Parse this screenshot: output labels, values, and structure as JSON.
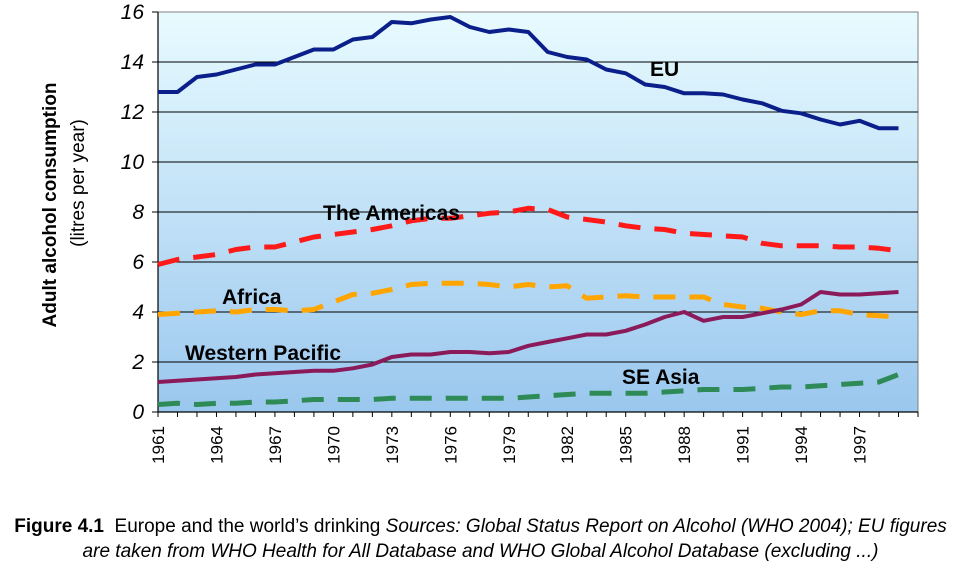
{
  "chart_data": {
    "type": "line",
    "ylabel": "Adult alcohol consumption",
    "ylabel_units": "(litres per year)",
    "ylim": [
      0,
      16
    ],
    "yticks": [
      "0",
      "2",
      "4",
      "6",
      "8",
      "10",
      "12",
      "14",
      "16"
    ],
    "xlim": [
      1961,
      2000
    ],
    "xticks": [
      "1961",
      "1964",
      "1967",
      "1970",
      "1973",
      "1976",
      "1979",
      "1982",
      "1985",
      "1988",
      "1991",
      "1994",
      "1997"
    ],
    "grid": true,
    "background": "light-blue vertical gradient",
    "x": [
      1961,
      1962,
      1963,
      1964,
      1965,
      1966,
      1967,
      1968,
      1969,
      1970,
      1971,
      1972,
      1973,
      1974,
      1975,
      1976,
      1977,
      1978,
      1979,
      1980,
      1981,
      1982,
      1983,
      1984,
      1985,
      1986,
      1987,
      1988,
      1989,
      1990,
      1991,
      1992,
      1993,
      1994,
      1995,
      1996,
      1997,
      1998,
      1999
    ],
    "series": [
      {
        "name": "EU",
        "color": "#0a1f8a",
        "style": "solid",
        "values": [
          12.8,
          12.8,
          13.4,
          13.5,
          13.7,
          13.9,
          13.9,
          14.2,
          14.5,
          14.5,
          14.9,
          15.0,
          15.6,
          15.55,
          15.7,
          15.8,
          15.4,
          15.2,
          15.3,
          15.2,
          14.4,
          14.2,
          14.1,
          13.7,
          13.55,
          13.1,
          13.0,
          12.75,
          12.75,
          12.7,
          12.5,
          12.35,
          12.05,
          11.95,
          11.7,
          11.5,
          11.65,
          11.35,
          11.35
        ]
      },
      {
        "name": "The Americas",
        "color": "#ff1a1a",
        "style": "dashed",
        "values": [
          5.9,
          6.1,
          6.2,
          6.3,
          6.5,
          6.6,
          6.6,
          6.8,
          7.0,
          7.1,
          7.2,
          7.3,
          7.45,
          7.65,
          7.75,
          7.75,
          7.85,
          7.95,
          8.0,
          8.15,
          8.1,
          7.8,
          7.7,
          7.6,
          7.45,
          7.35,
          7.3,
          7.15,
          7.1,
          7.05,
          7.0,
          6.75,
          6.65,
          6.65,
          6.65,
          6.6,
          6.6,
          6.55,
          6.45
        ]
      },
      {
        "name": "Africa",
        "color": "#ffa500",
        "style": "dashed",
        "values": [
          3.9,
          3.95,
          4.0,
          4.05,
          4.0,
          4.1,
          4.1,
          4.05,
          4.1,
          4.4,
          4.7,
          4.75,
          4.9,
          5.1,
          5.15,
          5.15,
          5.15,
          5.1,
          5.0,
          5.1,
          5.0,
          5.05,
          4.55,
          4.6,
          4.65,
          4.6,
          4.6,
          4.6,
          4.6,
          4.3,
          4.2,
          4.15,
          4.0,
          3.9,
          4.05,
          4.05,
          3.9,
          3.85,
          3.8
        ]
      },
      {
        "name": "Western Pacific",
        "color": "#8b1a5a",
        "style": "solid",
        "values": [
          1.2,
          1.25,
          1.3,
          1.35,
          1.4,
          1.5,
          1.55,
          1.6,
          1.65,
          1.65,
          1.75,
          1.9,
          2.2,
          2.3,
          2.3,
          2.4,
          2.4,
          2.35,
          2.4,
          2.65,
          2.8,
          2.95,
          3.1,
          3.1,
          3.25,
          3.5,
          3.8,
          4.0,
          3.65,
          3.8,
          3.8,
          3.95,
          4.1,
          4.3,
          4.8,
          4.7,
          4.7,
          4.75,
          4.8
        ]
      },
      {
        "name": "SE Asia",
        "color": "#2e8b57",
        "style": "dashed",
        "values": [
          0.3,
          0.35,
          0.3,
          0.35,
          0.35,
          0.4,
          0.4,
          0.45,
          0.5,
          0.5,
          0.5,
          0.5,
          0.55,
          0.55,
          0.55,
          0.55,
          0.55,
          0.55,
          0.55,
          0.6,
          0.65,
          0.7,
          0.75,
          0.75,
          0.75,
          0.75,
          0.8,
          0.85,
          0.9,
          0.9,
          0.9,
          0.95,
          1.0,
          1.0,
          1.05,
          1.1,
          1.15,
          1.2,
          1.5
        ]
      }
    ]
  },
  "caption": {
    "figure_number": "Figure 4.1",
    "title": "Europe and the world’s drinking",
    "sources": "Sources: Global Status Report on Alcohol (WHO 2004); EU figures are taken from WHO Health for All Database and WHO Global Alcohol Database (excluding ...)"
  }
}
